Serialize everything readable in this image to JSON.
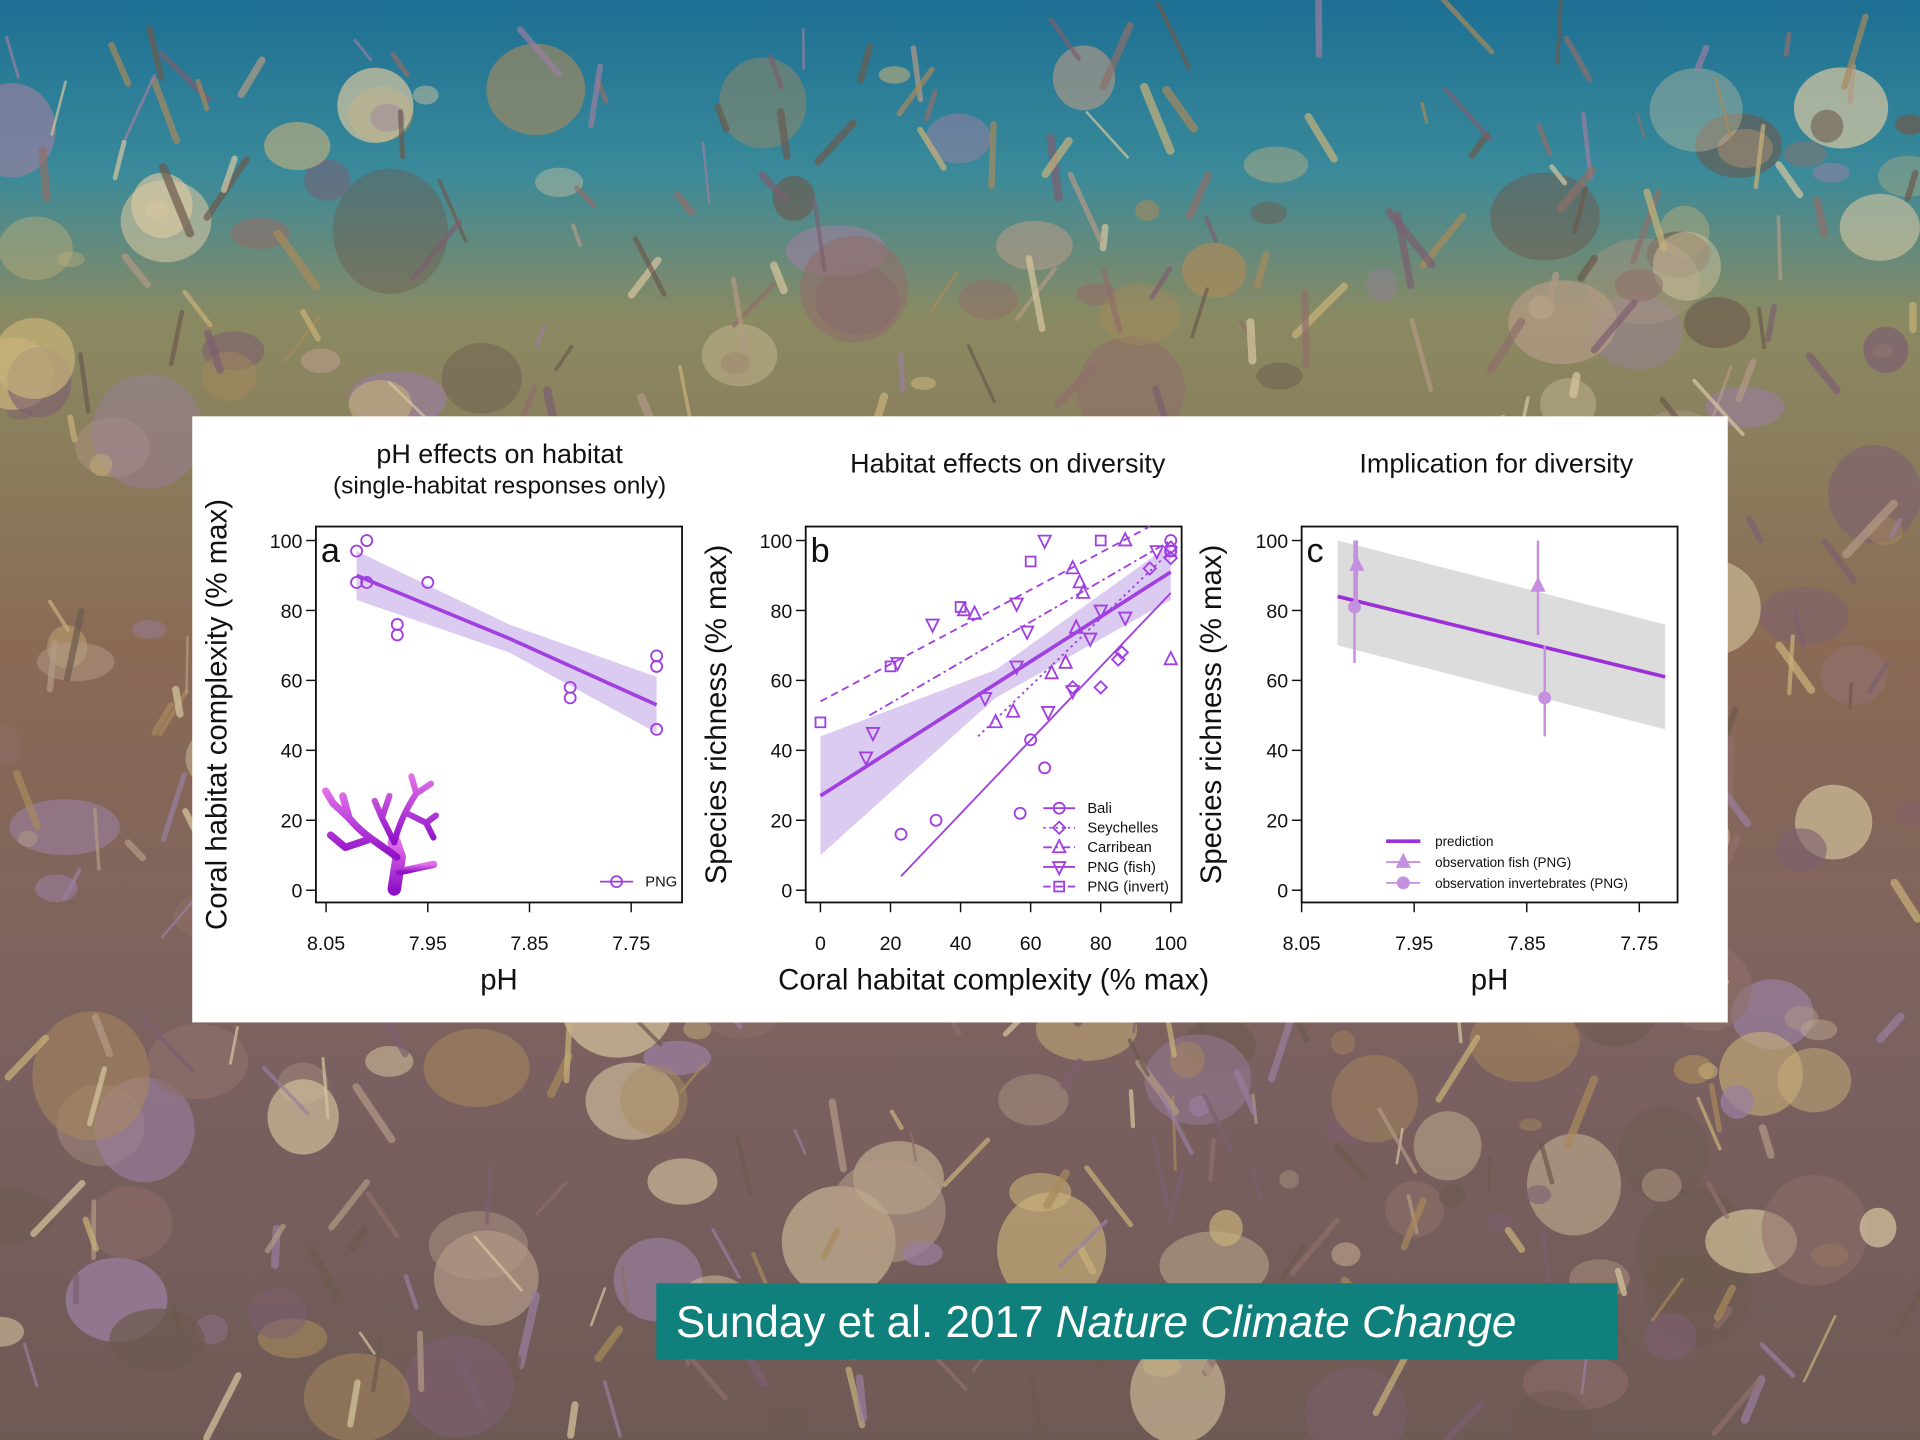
{
  "chart_data": [
    {
      "type": "scatter",
      "title": "pH effects on habitat",
      "subtitle": "(single-habitat responses only)",
      "panel_label": "a",
      "xlabel": "pH",
      "ylabel": "Coral habitat complexity (% max)",
      "xlim": [
        8.06,
        7.7
      ],
      "ylim": [
        -3.5,
        104
      ],
      "xticks": [
        8.05,
        7.95,
        7.85,
        7.75
      ],
      "yticks": [
        0,
        20,
        40,
        60,
        80,
        100
      ],
      "legend": "lower right",
      "series": [
        {
          "name": "PNG",
          "color": "#a040e0",
          "marker": "circle",
          "dash": "solid",
          "x": [
            8.02,
            8.01,
            8.02,
            8.01,
            7.95,
            7.98,
            7.98,
            7.81,
            7.81,
            7.725,
            7.725,
            7.725
          ],
          "values": [
            97,
            100,
            88,
            88,
            88,
            76,
            73,
            58,
            55,
            67,
            64,
            46
          ],
          "line_x": [
            8.02,
            7.87,
            7.725
          ],
          "line_values": [
            90,
            72,
            53
          ],
          "line_width": 3,
          "band_lower": [
            83,
            68,
            45
          ],
          "band_upper": [
            97,
            76,
            61
          ],
          "band_color": "#dccbf0"
        }
      ]
    },
    {
      "type": "scatter",
      "title": "Habitat effects on diversity",
      "panel_label": "b",
      "xlabel": "Coral habitat complexity (% max)",
      "ylabel": "Species richness (% max)",
      "xlim": [
        -4.2,
        103.1
      ],
      "ylim": [
        -3.5,
        104
      ],
      "xticks": [
        0,
        20,
        40,
        60,
        80,
        100
      ],
      "yticks": [
        0,
        20,
        40,
        60,
        80,
        100
      ],
      "legend": "lower right",
      "series": [
        {
          "name": "Bali",
          "color": "#a040e0",
          "marker": "circle",
          "dash": "solid",
          "x": [
            23,
            33,
            57,
            60,
            64,
            100,
            100
          ],
          "values": [
            16,
            20,
            22,
            43,
            35,
            100,
            97
          ],
          "line_x": [
            23,
            100
          ],
          "line_values": [
            4,
            85
          ],
          "line_width": 1.5
        },
        {
          "name": "Seychelles",
          "color": "#a040e0",
          "marker": "diamond",
          "dash": "dotted",
          "x": [
            72,
            80,
            85,
            86,
            94,
            100,
            100
          ],
          "values": [
            58,
            58,
            66,
            68,
            92,
            98,
            95
          ],
          "line_x": [
            45,
            100
          ],
          "line_values": [
            44,
            97
          ],
          "line_width": 1.5
        },
        {
          "name": "Carribean",
          "color": "#a040e0",
          "marker": "triangle-up",
          "dash": "dashdot",
          "x": [
            41,
            44,
            50,
            55,
            66,
            70,
            72,
            73,
            74,
            75,
            87,
            100
          ],
          "values": [
            80,
            79,
            48,
            51,
            62,
            65,
            92,
            75,
            88,
            85,
            100,
            66
          ],
          "line_x": [
            14,
            100
          ],
          "line_values": [
            50,
            100
          ],
          "line_width": 1.5
        },
        {
          "name": "PNG (fish)",
          "color": "#a040e0",
          "marker": "triangle-down",
          "dash": "solid",
          "x": [
            13,
            15,
            22,
            32,
            47,
            56,
            56,
            59,
            64,
            65,
            72,
            77,
            80,
            87,
            96
          ],
          "values": [
            38,
            45,
            65,
            76,
            55,
            64,
            82,
            74,
            100,
            51,
            57,
            72,
            80,
            78,
            97
          ],
          "line_x": [
            0,
            50,
            100
          ],
          "line_values": [
            27,
            59,
            91
          ],
          "line_width": 3,
          "band_lower": [
            10,
            55,
            83
          ],
          "band_upper": [
            44,
            63,
            99
          ],
          "band_color": "#dccbf0"
        },
        {
          "name": "PNG (invert)",
          "color": "#a040e0",
          "marker": "square",
          "dash": "dashed",
          "x": [
            0,
            20,
            40,
            60,
            80,
            100
          ],
          "values": [
            48,
            64,
            81,
            94,
            100,
            97
          ],
          "line_x": [
            0,
            94
          ],
          "line_values": [
            54,
            104
          ],
          "line_width": 1.5
        }
      ]
    },
    {
      "type": "line",
      "title": "Implication for diversity",
      "panel_label": "c",
      "xlabel": "pH",
      "ylabel": "Species richness (% max)",
      "xlim": [
        8.05,
        7.716
      ],
      "ylim": [
        -3.5,
        104
      ],
      "xticks": [
        8.05,
        7.95,
        7.85,
        7.75
      ],
      "yticks": [
        0,
        20,
        40,
        60,
        80,
        100
      ],
      "legend": "lower right",
      "series": [
        {
          "name": "prediction",
          "color": "#9b30d9",
          "dash": "solid",
          "line_x": [
            8.018,
            7.727
          ],
          "line_values": [
            84,
            61
          ],
          "line_width": 3,
          "band_lower": [
            70,
            46
          ],
          "band_upper": [
            100,
            76
          ],
          "band_color": "#dcdcdc"
        },
        {
          "name": "observation fish (PNG)",
          "color": "#c590e0",
          "marker": "triangle-up",
          "filled": true,
          "dash": "solid",
          "x": [
            8.001,
            7.84
          ],
          "values": [
            93,
            87
          ],
          "lower": [
            80,
            73
          ],
          "upper": [
            100,
            100
          ]
        },
        {
          "name": "observation invertebrates (PNG)",
          "color": "#c590e0",
          "marker": "circle",
          "filled": true,
          "dash": "solid",
          "x": [
            8.003,
            7.834
          ],
          "values": [
            81,
            55
          ],
          "lower": [
            65,
            44
          ],
          "upper": [
            100,
            70
          ]
        }
      ]
    }
  ],
  "citation": {
    "authors": "Sunday et al. 2017",
    "journal": "Nature Climate Change"
  }
}
